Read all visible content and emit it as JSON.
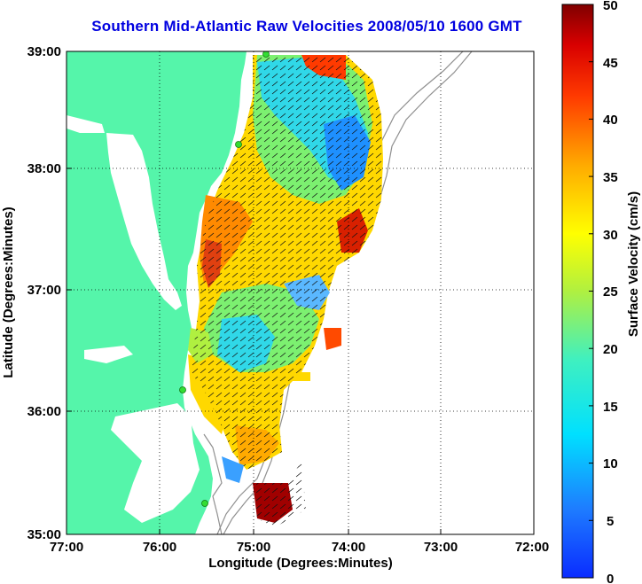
{
  "title": "Southern Mid-Atlantic Raw Velocities 2008/05/10 1600 GMT",
  "axes": {
    "xlabel": "Longitude (Degrees:Minutes)",
    "ylabel": "Latitude (Degrees:Minutes)",
    "x_ticks": [
      "77:00",
      "76:00",
      "75:00",
      "74:00",
      "73:00",
      "72:00"
    ],
    "y_ticks": [
      "39:00",
      "38:00",
      "37:00",
      "36:00",
      "35:00"
    ],
    "grid": "dotted"
  },
  "colorbar": {
    "label": "Surface Velocity (cm/s)",
    "ticks": [
      "50",
      "45",
      "40",
      "35",
      "30",
      "25",
      "20",
      "15",
      "10",
      "5",
      "0"
    ],
    "range": [
      0,
      50
    ]
  },
  "colors": {
    "land": "#55f5aa",
    "title": "#0000e0",
    "station": "#33dd33",
    "bathymetry": "#909090"
  }
}
